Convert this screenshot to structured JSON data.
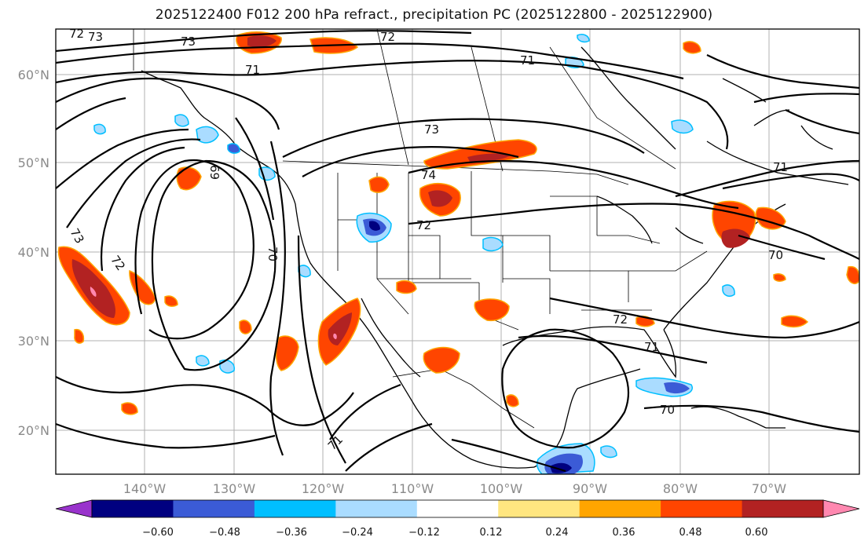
{
  "title": "2025122400 F012 200 hPa refract., precipitation PC (2025122800 - 2025122900)",
  "map": {
    "lat_labels": [
      "60°N",
      "50°N",
      "40°N",
      "30°N",
      "20°N"
    ],
    "lon_labels": [
      "140°W",
      "130°W",
      "120°W",
      "110°W",
      "100°W",
      "90°W",
      "80°W",
      "70°W"
    ],
    "contour_labels": [
      "72",
      "73",
      "73",
      "72",
      "71",
      "71",
      "73",
      "69",
      "74",
      "72",
      "70",
      "73",
      "72",
      "72",
      "71",
      "70",
      "71",
      "71",
      "70"
    ]
  },
  "colorbar": {
    "colors": [
      "#9933cc",
      "#000080",
      "#3b5bd6",
      "#00bfff",
      "#aadcff",
      "#ffffff",
      "#ffe680",
      "#ffa500",
      "#ff4500",
      "#b22222",
      "#ff88b0"
    ],
    "ticks": [
      "−0.60",
      "−0.48",
      "−0.36",
      "−0.24",
      "−0.12",
      "0.12",
      "0.24",
      "0.36",
      "0.48",
      "0.60"
    ]
  }
}
